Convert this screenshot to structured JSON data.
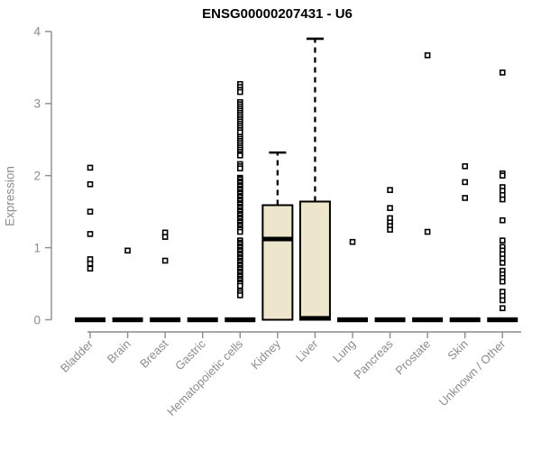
{
  "chart_data": {
    "type": "boxplot",
    "title": "ENSG00000207431 - U6",
    "xlabel": "",
    "ylabel": "Expression",
    "ylim": [
      0,
      4
    ],
    "yticks": [
      0,
      1,
      2,
      3,
      4
    ],
    "grid": false,
    "legend": null,
    "categories": [
      "Bladder",
      "Brain",
      "Breast",
      "Gastric",
      "Hematopoietic cells",
      "Kidney",
      "Liver",
      "Lung",
      "Pancreas",
      "Prostate",
      "Skin",
      "Unknown / Other"
    ],
    "boxes": [
      {
        "category": "Bladder",
        "q1": 0,
        "median": 0,
        "q3": 0,
        "whisker_low": 0,
        "whisker_high": 0,
        "outliers": [
          2.11,
          1.88,
          1.5,
          1.19,
          0.84,
          0.78,
          0.71
        ]
      },
      {
        "category": "Brain",
        "q1": 0,
        "median": 0,
        "q3": 0,
        "whisker_low": 0,
        "whisker_high": 0,
        "outliers": [
          0.96
        ]
      },
      {
        "category": "Breast",
        "q1": 0,
        "median": 0,
        "q3": 0,
        "whisker_low": 0,
        "whisker_high": 0,
        "outliers": [
          1.21,
          1.15,
          0.82
        ]
      },
      {
        "category": "Gastric",
        "q1": 0,
        "median": 0,
        "q3": 0,
        "whisker_low": 0,
        "whisker_high": 0,
        "outliers": []
      },
      {
        "category": "Hematopoietic cells",
        "q1": 0,
        "median": 0,
        "q3": 0,
        "whisker_low": 0,
        "whisker_high": 0,
        "outliers": [
          3.27,
          3.23,
          3.19,
          3.16,
          3.02,
          2.99,
          2.96,
          2.93,
          2.9,
          2.87,
          2.84,
          2.81,
          2.78,
          2.75,
          2.72,
          2.69,
          2.66,
          2.63,
          2.6,
          2.54,
          2.51,
          2.48,
          2.45,
          2.42,
          2.39,
          2.36,
          2.33,
          2.3,
          2.28,
          2.16,
          2.13,
          2.1,
          1.97,
          1.95,
          1.92,
          1.9,
          1.87,
          1.85,
          1.82,
          1.8,
          1.77,
          1.75,
          1.72,
          1.7,
          1.67,
          1.65,
          1.62,
          1.6,
          1.57,
          1.55,
          1.52,
          1.5,
          1.47,
          1.45,
          1.42,
          1.4,
          1.37,
          1.35,
          1.32,
          1.3,
          1.27,
          1.25,
          1.22,
          1.1,
          1.07,
          1.05,
          1.02,
          1.0,
          0.97,
          0.95,
          0.92,
          0.9,
          0.87,
          0.85,
          0.82,
          0.8,
          0.77,
          0.75,
          0.72,
          0.7,
          0.67,
          0.65,
          0.62,
          0.6,
          0.57,
          0.55,
          0.52,
          0.5,
          0.47,
          0.4,
          0.37,
          0.34
        ]
      },
      {
        "category": "Kidney",
        "q1": 0,
        "median": 1.12,
        "q3": 1.59,
        "whisker_low": 0,
        "whisker_high": 2.32,
        "outliers": []
      },
      {
        "category": "Liver",
        "q1": 0,
        "median": 0.02,
        "q3": 1.64,
        "whisker_low": 0,
        "whisker_high": 3.9,
        "outliers": []
      },
      {
        "category": "Lung",
        "q1": 0,
        "median": 0,
        "q3": 0,
        "whisker_low": 0,
        "whisker_high": 0,
        "outliers": [
          1.08
        ]
      },
      {
        "category": "Pancreas",
        "q1": 0,
        "median": 0,
        "q3": 0,
        "whisker_low": 0,
        "whisker_high": 0,
        "outliers": [
          1.8,
          1.55,
          1.41,
          1.35,
          1.3,
          1.25
        ]
      },
      {
        "category": "Prostate",
        "q1": 0,
        "median": 0,
        "q3": 0,
        "whisker_low": 0,
        "whisker_high": 0,
        "outliers": [
          3.67,
          1.22
        ]
      },
      {
        "category": "Skin",
        "q1": 0,
        "median": 0,
        "q3": 0,
        "whisker_low": 0,
        "whisker_high": 0,
        "outliers": [
          2.13,
          1.91,
          1.69
        ]
      },
      {
        "category": "Unknown / Other",
        "q1": 0,
        "median": 0,
        "q3": 0,
        "whisker_low": 0,
        "whisker_high": 0,
        "outliers": [
          3.43,
          2.03,
          2.0,
          1.84,
          1.79,
          1.73,
          1.67,
          1.38,
          1.1,
          1.01,
          0.96,
          0.91,
          0.85,
          0.79,
          0.68,
          0.63,
          0.58,
          0.53,
          0.39,
          0.33,
          0.27,
          0.16
        ]
      }
    ]
  },
  "colors": {
    "axis": "#8c8c8c",
    "tick_label": "#8c8c8c",
    "title": "#000000",
    "box_fill": "#ede6cc",
    "box_stroke": "#000000",
    "median": "#000000",
    "whisker": "#000000",
    "outlier_stroke": "#000000",
    "outlier_fill": "#ffffff"
  }
}
